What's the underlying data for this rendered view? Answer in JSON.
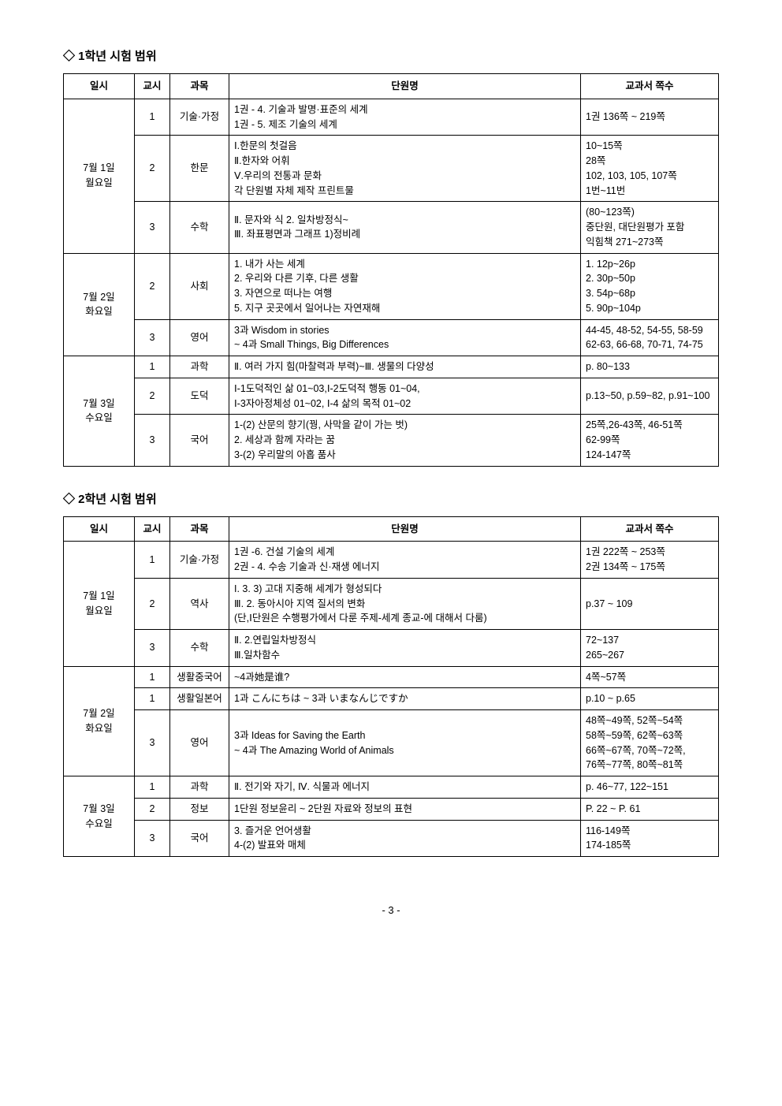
{
  "sections": {
    "grade1": {
      "title": "◇ 1학년 시험 범위",
      "headers": {
        "date": "일시",
        "period": "교시",
        "subject": "과목",
        "unit": "단원명",
        "pages": "교과서 쪽수"
      },
      "days": [
        {
          "date": "7월 1일\n월요일",
          "rows": [
            {
              "period": "1",
              "subject": "기술·가정",
              "unit": "1권 - 4. 기술과 발명·표준의 세계\n1권 - 5. 제조 기술의 세계",
              "pages": "1권 136쪽 ~ 219쪽"
            },
            {
              "period": "2",
              "subject": "한문",
              "unit": "Ⅰ.한문의 첫걸음\nⅡ.한자와 어휘\nⅤ.우리의 전통과 문화\n각 단원별 자체 제작 프린트물",
              "pages": "10~15쪽\n28쪽\n102, 103, 105, 107쪽\n1번~11번"
            },
            {
              "period": "3",
              "subject": "수학",
              "unit": "Ⅱ. 문자와 식 2. 일차방정식~\nⅢ. 좌표평면과 그래프 1)정비례",
              "pages": "(80~123쪽)\n중단원, 대단원평가 포함\n익힘책 271~273쪽"
            }
          ]
        },
        {
          "date": "7월 2일\n화요일",
          "rows": [
            {
              "period": "2",
              "subject": "사회",
              "unit": "1. 내가 사는 세계\n2. 우리와 다른 기후, 다른 생활\n3. 자연으로 떠나는 여행\n5. 지구 곳곳에서 일어나는 자연재해",
              "pages": "1. 12p~26p\n2. 30p~50p\n3. 54p~68p\n5. 90p~104p"
            },
            {
              "period": "3",
              "subject": "영어",
              "unit": "3과 Wisdom in stories\n~ 4과 Small Things, Big Differences",
              "pages": "44-45, 48-52, 54-55, 58-59\n62-63, 66-68, 70-71, 74-75"
            }
          ]
        },
        {
          "date": "7월 3일\n수요일",
          "rows": [
            {
              "period": "1",
              "subject": "과학",
              "unit": "Ⅱ. 여러 가지 힘(마찰력과 부력)~Ⅲ. 생물의 다양성",
              "pages": "p. 80~133"
            },
            {
              "period": "2",
              "subject": "도덕",
              "unit": "Ⅰ-1도덕적인 삶 01~03,Ⅰ-2도덕적 행동 01~04,\nⅠ-3자아정체성 01~02, Ⅰ-4 삶의 목적 01~02",
              "pages": "p.13~50, p.59~82, p.91~100"
            },
            {
              "period": "3",
              "subject": "국어",
              "unit": "1-(2) 산문의 향기(꿩, 사막을 같이 가는 벗)\n2. 세상과 함께 자라는 꿈\n3-(2) 우리말의 아홉 품사",
              "pages": "25쪽,26-43쪽, 46-51쪽\n62-99쪽\n124-147쪽"
            }
          ]
        }
      ]
    },
    "grade2": {
      "title": "◇ 2학년 시험 범위",
      "headers": {
        "date": "일시",
        "period": "교시",
        "subject": "과목",
        "unit": "단원명",
        "pages": "교과서 쪽수"
      },
      "days": [
        {
          "date": "7월 1일\n월요일",
          "rows": [
            {
              "period": "1",
              "subject": "기술·가정",
              "unit": "1권 -6. 건설 기술의 세계\n2권 - 4. 수송 기술과 신·재생 에너지",
              "pages": "1권 222쪽 ~ 253쪽\n2권 134쪽 ~ 175쪽"
            },
            {
              "period": "2",
              "subject": "역사",
              "unit": "I. 3. 3) 고대 지중해 세계가 형성되다\nⅢ. 2. 동아시아 지역 질서의 변화\n(단,Ⅰ단원은 수행평가에서 다룬 주제-세계 종교-에 대해서 다룸)",
              "pages": "p.37 ~ 109"
            },
            {
              "period": "3",
              "subject": "수학",
              "unit": "Ⅱ. 2.연립일차방정식\nⅢ.일차함수",
              "pages": "72~137\n265~267"
            }
          ]
        },
        {
          "date": "7월 2일\n화요일",
          "rows": [
            {
              "period": "1",
              "subject": "생활중국어",
              "unit": "~4과她是谁?",
              "pages": "4쪽~57쪽"
            },
            {
              "period": "1",
              "subject": "생활일본어",
              "unit": "1과 こんにちは ~ 3과 いまなんじですか",
              "pages": "p.10 ~ p.65"
            },
            {
              "period": "3",
              "subject": "영어",
              "unit": "3과 Ideas for Saving the Earth\n~ 4과 The Amazing World of Animals",
              "pages": "48쪽~49쪽, 52쪽~54쪽\n58쪽~59쪽, 62쪽~63쪽\n66쪽~67쪽, 70쪽~72쪽,\n76쪽~77쪽, 80쪽~81쪽"
            }
          ]
        },
        {
          "date": "7월 3일\n수요일",
          "rows": [
            {
              "period": "1",
              "subject": "과학",
              "unit": "Ⅱ. 전기와 자기, Ⅳ. 식물과 에너지",
              "pages": "p. 46~77, 122~151"
            },
            {
              "period": "2",
              "subject": "정보",
              "unit": "1단원 정보윤리 ~ 2단원 자료와 정보의 표현",
              "pages": "P. 22 ~ P. 61"
            },
            {
              "period": "3",
              "subject": "국어",
              "unit": "3. 즐거운 언어생활\n4-(2) 발표와 매체",
              "pages": "116-149쪽\n174-185쪽"
            }
          ]
        }
      ]
    }
  },
  "pageNumber": "- 3 -"
}
